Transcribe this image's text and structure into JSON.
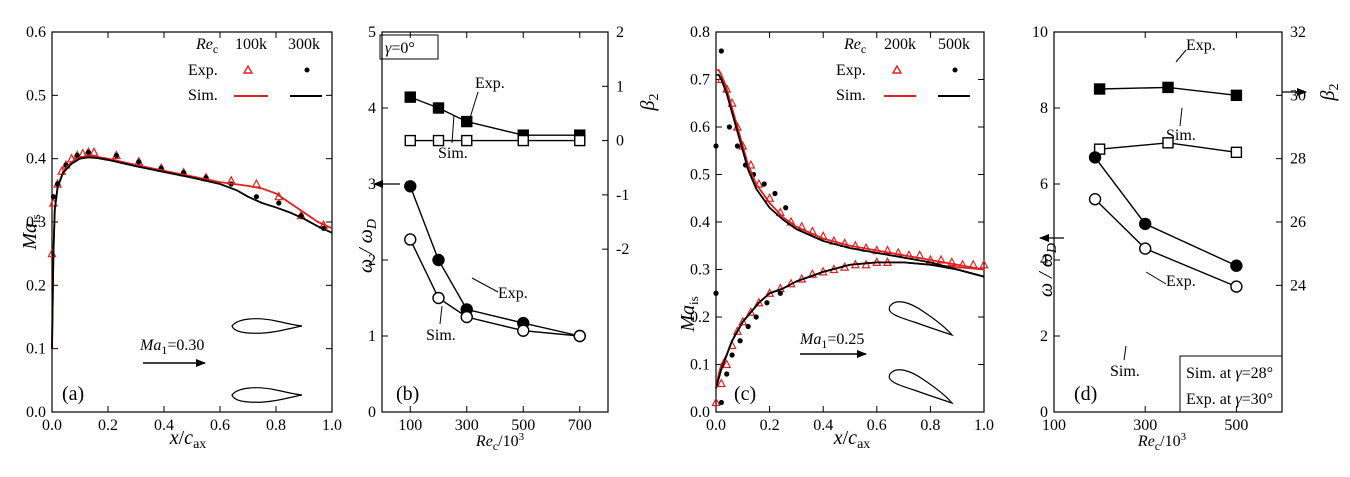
{
  "chart_data": [
    {
      "panel": "(a)",
      "type": "line",
      "xlabel": "x/c_ax",
      "ylabel": "Ma_is",
      "xlim": [
        0,
        1
      ],
      "ylim": [
        0,
        0.6
      ],
      "xticks": [
        "0.0",
        "0.2",
        "0.4",
        "0.6",
        "0.8",
        "1.0"
      ],
      "yticks": [
        "0.0",
        "0.1",
        "0.2",
        "0.3",
        "0.4",
        "0.5",
        "0.6"
      ],
      "legend": {
        "header": "Re_c",
        "columns": [
          "100k",
          "300k"
        ],
        "rows": [
          "Exp.",
          "Sim."
        ],
        "placement": "top-right"
      },
      "annotation": "Ma_1=0.30",
      "series": [
        {
          "name": "Exp. 100k",
          "style": "red-triangle",
          "x": [
            0.0,
            0.005,
            0.02,
            0.035,
            0.05,
            0.07,
            0.09,
            0.11,
            0.13,
            0.15,
            0.23,
            0.31,
            0.39,
            0.47,
            0.55,
            0.64,
            0.73,
            0.81,
            0.89,
            0.97
          ],
          "y": [
            0.25,
            0.33,
            0.36,
            0.38,
            0.39,
            0.4,
            0.405,
            0.408,
            0.41,
            0.41,
            0.405,
            0.395,
            0.385,
            0.378,
            0.37,
            0.365,
            0.36,
            0.34,
            0.31,
            0.295
          ]
        },
        {
          "name": "Exp. 300k",
          "style": "black-dot",
          "x": [
            0.005,
            0.02,
            0.05,
            0.09,
            0.13,
            0.23,
            0.31,
            0.39,
            0.47,
            0.55,
            0.64,
            0.73,
            0.81,
            0.89,
            0.97
          ],
          "y": [
            0.34,
            0.36,
            0.39,
            0.405,
            0.41,
            0.405,
            0.395,
            0.385,
            0.378,
            0.37,
            0.36,
            0.34,
            0.33,
            0.31,
            0.29
          ]
        },
        {
          "name": "Sim. 100k",
          "style": "red-line",
          "x": [
            0,
            0.005,
            0.01,
            0.02,
            0.04,
            0.07,
            0.1,
            0.13,
            0.16,
            0.2,
            0.3,
            0.4,
            0.5,
            0.6,
            0.7,
            0.75,
            0.8,
            0.85,
            0.9,
            0.95,
            1.0
          ],
          "y": [
            0.1,
            0.25,
            0.32,
            0.355,
            0.38,
            0.395,
            0.402,
            0.404,
            0.403,
            0.4,
            0.39,
            0.381,
            0.372,
            0.363,
            0.357,
            0.353,
            0.345,
            0.33,
            0.315,
            0.3,
            0.29
          ]
        },
        {
          "name": "Sim. 300k",
          "style": "black-line",
          "x": [
            0,
            0.005,
            0.01,
            0.02,
            0.04,
            0.07,
            0.1,
            0.13,
            0.16,
            0.2,
            0.3,
            0.4,
            0.5,
            0.6,
            0.66,
            0.7,
            0.75,
            0.8,
            0.85,
            0.9,
            0.95,
            1.0
          ],
          "y": [
            0.1,
            0.25,
            0.32,
            0.355,
            0.378,
            0.392,
            0.4,
            0.402,
            0.401,
            0.398,
            0.388,
            0.379,
            0.37,
            0.36,
            0.35,
            0.34,
            0.33,
            0.323,
            0.315,
            0.305,
            0.293,
            0.283
          ]
        }
      ]
    },
    {
      "panel": "(b)",
      "type": "line",
      "xlabel": "Re_c/10^3",
      "ylabel": "ω/ω_D",
      "y2label": "β_2",
      "xlim": [
        0,
        800
      ],
      "ylim": [
        0,
        5
      ],
      "y2lim": [
        -5,
        2
      ],
      "xticks": [
        "100",
        "300",
        "500",
        "700"
      ],
      "yticks": [
        "0",
        "1",
        "2",
        "3",
        "4",
        "5"
      ],
      "y2ticks": [
        "-2",
        "-1",
        "0",
        "1",
        "2"
      ],
      "annotations": [
        "γ=0°",
        "Exp.",
        "Sim.",
        "Exp.",
        "Sim."
      ],
      "series": [
        {
          "name": "β2 Exp.",
          "axis": "right",
          "marker": "filled-square",
          "x": [
            100,
            200,
            300,
            500,
            700
          ],
          "y": [
            0.8,
            0.6,
            0.35,
            0.1,
            0.1
          ]
        },
        {
          "name": "β2 Sim.",
          "axis": "right",
          "marker": "open-square",
          "x": [
            100,
            200,
            300,
            500,
            700
          ],
          "y": [
            0,
            0,
            0,
            0,
            0
          ]
        },
        {
          "name": "ω Exp.",
          "axis": "left",
          "marker": "filled-circle",
          "x": [
            100,
            200,
            300,
            500,
            700
          ],
          "y": [
            2.97,
            2.0,
            1.35,
            1.17,
            1.0
          ]
        },
        {
          "name": "ω Sim.",
          "axis": "left",
          "marker": "open-circle",
          "x": [
            100,
            200,
            300,
            500,
            700
          ],
          "y": [
            2.27,
            1.5,
            1.25,
            1.07,
            1.0
          ]
        }
      ]
    },
    {
      "panel": "(c)",
      "type": "line",
      "xlabel": "x/c_ax",
      "ylabel": "Ma_is",
      "xlim": [
        0,
        1
      ],
      "ylim": [
        0,
        0.8
      ],
      "xticks": [
        "0.0",
        "0.2",
        "0.4",
        "0.6",
        "0.8",
        "1.0"
      ],
      "yticks": [
        "0.0",
        "0.1",
        "0.2",
        "0.3",
        "0.4",
        "0.5",
        "0.6",
        "0.7",
        "0.8"
      ],
      "legend": {
        "header": "Re_c",
        "columns": [
          "200k",
          "500k"
        ],
        "rows": [
          "Exp.",
          "Sim."
        ],
        "placement": "top-right"
      },
      "annotation": "Ma_1=0.25",
      "series": [
        {
          "name": "Exp. 200k upper",
          "style": "red-triangle",
          "x": [
            0.02,
            0.04,
            0.06,
            0.08,
            0.1,
            0.13,
            0.16,
            0.2,
            0.24,
            0.28,
            0.32,
            0.36,
            0.4,
            0.44,
            0.48,
            0.52,
            0.56,
            0.6,
            0.64,
            0.68,
            0.72,
            0.76,
            0.8,
            0.84,
            0.88,
            0.92,
            0.96,
            1.0
          ],
          "y": [
            0.7,
            0.68,
            0.65,
            0.6,
            0.56,
            0.52,
            0.48,
            0.45,
            0.42,
            0.4,
            0.39,
            0.38,
            0.37,
            0.36,
            0.355,
            0.35,
            0.345,
            0.34,
            0.34,
            0.335,
            0.33,
            0.33,
            0.32,
            0.32,
            0.315,
            0.31,
            0.31,
            0.31
          ]
        },
        {
          "name": "Exp. 200k lower",
          "style": "red-triangle",
          "x": [
            0.0,
            0.02,
            0.04,
            0.06,
            0.08,
            0.1,
            0.13,
            0.16,
            0.2,
            0.24,
            0.28,
            0.32,
            0.36,
            0.4,
            0.44,
            0.48,
            0.52,
            0.56,
            0.6,
            0.64
          ],
          "y": [
            0.02,
            0.06,
            0.1,
            0.14,
            0.17,
            0.19,
            0.21,
            0.23,
            0.25,
            0.26,
            0.27,
            0.28,
            0.29,
            0.295,
            0.3,
            0.305,
            0.31,
            0.31,
            0.315,
            0.315
          ]
        },
        {
          "name": "Exp. 500k upper",
          "style": "black-dot",
          "x": [
            0.0,
            0.02,
            0.05,
            0.08,
            0.11,
            0.14,
            0.18,
            0.22,
            0.26
          ],
          "y": [
            0.56,
            0.76,
            0.6,
            0.56,
            0.52,
            0.5,
            0.48,
            0.46,
            0.43
          ]
        },
        {
          "name": "Exp. 500k lower",
          "style": "black-dot",
          "x": [
            0.0,
            0.02,
            0.04,
            0.06,
            0.09,
            0.12,
            0.15,
            0.19,
            0.24
          ],
          "y": [
            0.25,
            0.02,
            0.08,
            0.12,
            0.15,
            0.18,
            0.2,
            0.23,
            0.25
          ]
        },
        {
          "name": "Sim. 200k upper",
          "style": "red-line",
          "x": [
            0.0,
            0.01,
            0.02,
            0.04,
            0.06,
            0.08,
            0.1,
            0.12,
            0.15,
            0.2,
            0.25,
            0.3,
            0.4,
            0.5,
            0.6,
            0.7,
            0.8,
            0.9,
            1.0
          ],
          "y": [
            0.72,
            0.72,
            0.71,
            0.68,
            0.64,
            0.6,
            0.56,
            0.52,
            0.48,
            0.44,
            0.41,
            0.39,
            0.365,
            0.35,
            0.34,
            0.33,
            0.32,
            0.31,
            0.3
          ]
        },
        {
          "name": "Sim. 200k lower",
          "style": "red-line",
          "x": [
            0.0,
            0.01,
            0.02,
            0.04,
            0.06,
            0.08,
            0.1,
            0.13,
            0.16,
            0.2,
            0.25,
            0.3,
            0.4,
            0.5,
            0.6,
            0.7,
            0.8,
            0.9,
            1.0
          ],
          "y": [
            0.05,
            0.08,
            0.1,
            0.12,
            0.15,
            0.17,
            0.19,
            0.21,
            0.23,
            0.25,
            0.26,
            0.275,
            0.295,
            0.31,
            0.315,
            0.315,
            0.31,
            0.305,
            0.3
          ]
        },
        {
          "name": "Sim. 500k upper",
          "style": "black-line",
          "x": [
            0.0,
            0.01,
            0.02,
            0.04,
            0.06,
            0.08,
            0.1,
            0.12,
            0.15,
            0.2,
            0.25,
            0.3,
            0.4,
            0.5,
            0.6,
            0.7,
            0.8,
            0.9,
            1.0
          ],
          "y": [
            0.71,
            0.71,
            0.7,
            0.67,
            0.63,
            0.59,
            0.55,
            0.51,
            0.47,
            0.43,
            0.405,
            0.385,
            0.36,
            0.345,
            0.335,
            0.325,
            0.315,
            0.3,
            0.285
          ]
        },
        {
          "name": "Sim. 500k lower",
          "style": "black-line",
          "x": [
            0.0,
            0.01,
            0.02,
            0.04,
            0.06,
            0.08,
            0.1,
            0.13,
            0.16,
            0.2,
            0.25,
            0.3,
            0.4,
            0.5,
            0.6,
            0.7,
            0.8,
            0.9,
            1.0
          ],
          "y": [
            0.05,
            0.07,
            0.09,
            0.12,
            0.15,
            0.17,
            0.19,
            0.21,
            0.23,
            0.25,
            0.26,
            0.275,
            0.295,
            0.31,
            0.315,
            0.315,
            0.31,
            0.3,
            0.285
          ]
        }
      ]
    },
    {
      "panel": "(d)",
      "type": "line",
      "xlabel": "Re_c/10^3",
      "ylabel": "ω/ω_D",
      "y2label": "β_2",
      "xlim": [
        100,
        600
      ],
      "ylim": [
        0,
        10
      ],
      "y2lim": [
        20,
        32
      ],
      "xticks": [
        "100",
        "300",
        "500"
      ],
      "yticks": [
        "0",
        "2",
        "4",
        "6",
        "8",
        "10"
      ],
      "y2ticks": [
        "24",
        "26",
        "28",
        "30",
        "32"
      ],
      "annotations": [
        "Exp.",
        "Sim.",
        "Exp.",
        "Sim."
      ],
      "legend_box": [
        "Sim. at γ=28°",
        "Exp. at γ=30°"
      ],
      "series": [
        {
          "name": "β2 Exp.",
          "axis": "right",
          "marker": "filled-square",
          "x": [
            200,
            350,
            500
          ],
          "y": [
            30.2,
            30.25,
            30.0
          ]
        },
        {
          "name": "β2 Sim.",
          "axis": "right",
          "marker": "open-square",
          "x": [
            200,
            350,
            500
          ],
          "y": [
            28.3,
            28.5,
            28.2
          ]
        },
        {
          "name": "ω Exp.",
          "axis": "left",
          "marker": "filled-circle",
          "x": [
            190,
            300,
            500
          ],
          "y": [
            6.7,
            4.95,
            3.85
          ]
        },
        {
          "name": "ω Sim.",
          "axis": "left",
          "marker": "open-circle",
          "x": [
            190,
            300,
            500
          ],
          "y": [
            5.6,
            4.3,
            3.3
          ]
        }
      ]
    }
  ]
}
